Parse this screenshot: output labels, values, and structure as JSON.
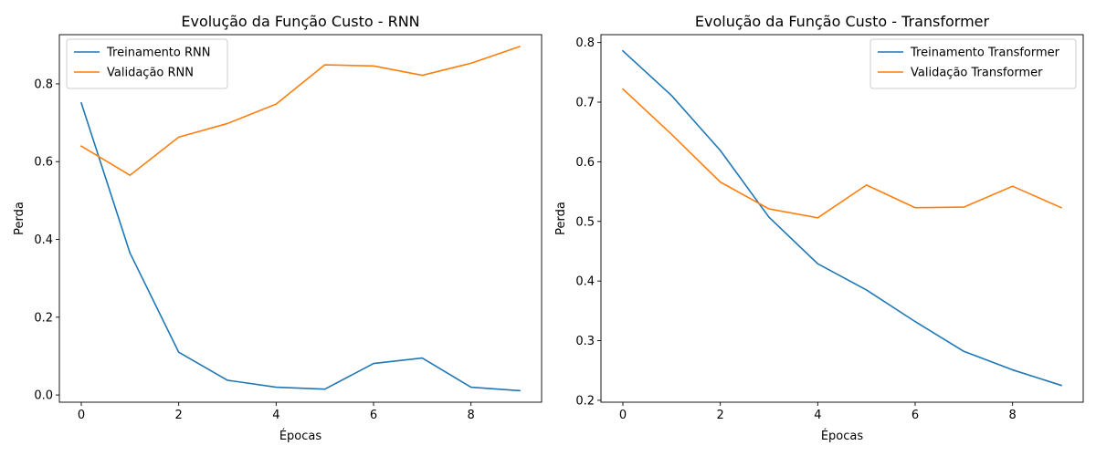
{
  "chart_data": [
    {
      "type": "line",
      "title": "Evolução da Função Custo - RNN",
      "xlabel": "Épocas",
      "ylabel": "Perda",
      "x": [
        0,
        1,
        2,
        3,
        4,
        5,
        6,
        7,
        8,
        9
      ],
      "xlim": [
        -0.45,
        9.45
      ],
      "ylim": [
        -0.0185,
        0.9265
      ],
      "xticks": [
        0,
        2,
        4,
        6,
        8
      ],
      "yticks": [
        0.0,
        0.2,
        0.4,
        0.6,
        0.8
      ],
      "yticklabels": [
        "0.0",
        "0.2",
        "0.4",
        "0.6",
        "0.8"
      ],
      "legend_loc": "upper left",
      "grid": false,
      "series": [
        {
          "name": "Treinamento RNN",
          "color": "#1f77b4",
          "values": [
            0.751,
            0.365,
            0.11,
            0.038,
            0.02,
            0.015,
            0.081,
            0.095,
            0.02,
            0.011
          ]
        },
        {
          "name": "Validação RNN",
          "color": "#ff7f0e",
          "values": [
            0.64,
            0.565,
            0.663,
            0.698,
            0.748,
            0.849,
            0.846,
            0.822,
            0.853,
            0.896
          ]
        }
      ]
    },
    {
      "type": "line",
      "title": "Evolução da Função Custo - Transformer",
      "xlabel": "Épocas",
      "ylabel": "Perda",
      "x": [
        0,
        1,
        2,
        3,
        4,
        5,
        6,
        7,
        8,
        9
      ],
      "xlim": [
        -0.45,
        9.45
      ],
      "ylim": [
        0.1968,
        0.8132
      ],
      "xticks": [
        0,
        2,
        4,
        6,
        8
      ],
      "yticks": [
        0.2,
        0.3,
        0.4,
        0.5,
        0.6,
        0.7,
        0.8
      ],
      "yticklabels": [
        "0.2",
        "0.3",
        "0.4",
        "0.5",
        "0.6",
        "0.7",
        "0.8"
      ],
      "legend_loc": "upper right",
      "grid": false,
      "series": [
        {
          "name": "Treinamento Transformer",
          "color": "#1f77b4",
          "values": [
            0.786,
            0.711,
            0.619,
            0.507,
            0.429,
            0.385,
            0.332,
            0.282,
            0.251,
            0.225
          ]
        },
        {
          "name": "Validação Transformer",
          "color": "#ff7f0e",
          "values": [
            0.722,
            0.646,
            0.566,
            0.521,
            0.506,
            0.561,
            0.523,
            0.524,
            0.559,
            0.523
          ]
        }
      ]
    }
  ]
}
